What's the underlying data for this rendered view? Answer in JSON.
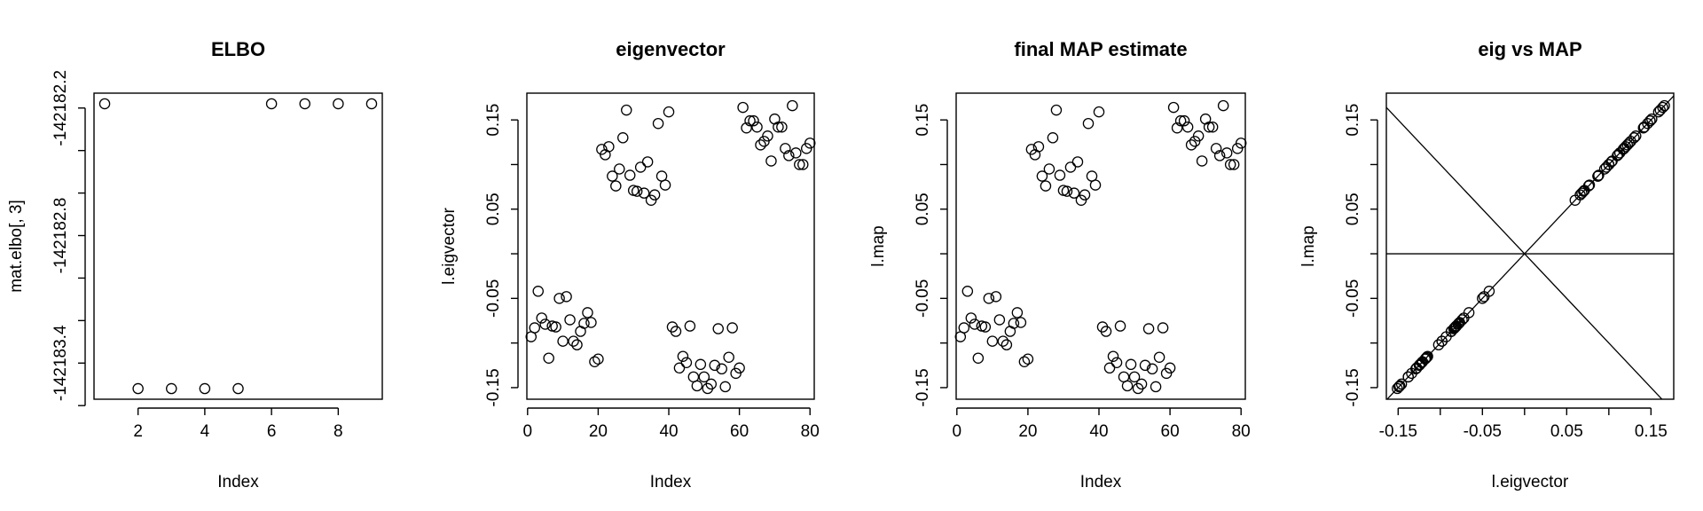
{
  "chart_data": [
    {
      "type": "scatter",
      "title": "ELBO",
      "xlabel": "Index",
      "ylabel": "mat.elbo[, 3]",
      "xlim": [
        0.68,
        9.32
      ],
      "ylim": [
        -142183.57,
        -142182.13
      ],
      "xticks": [
        2,
        4,
        6,
        8
      ],
      "xtick_labels": [
        "2",
        "4",
        "6",
        "8"
      ],
      "yticks": [
        -142183.6,
        -142183.4,
        -142183.2,
        -142183.0,
        -142182.8,
        -142182.6,
        -142182.4,
        -142182.2
      ],
      "ytick_labels": [
        "",
        "-142183.4",
        "",
        "",
        "-142182.8",
        "",
        "",
        "-142182.2"
      ],
      "x": [
        1,
        2,
        3,
        4,
        5,
        6,
        7,
        8,
        9
      ],
      "y": [
        -142182.18,
        -142183.52,
        -142183.52,
        -142183.52,
        -142183.52,
        -142182.18,
        -142182.18,
        -142182.18,
        -142182.18
      ]
    },
    {
      "type": "scatter",
      "title": "eigenvector",
      "xlabel": "Index",
      "ylabel": "l.eigvector",
      "xlim": [
        -0.2,
        81.2
      ],
      "ylim": [
        -0.163,
        0.18
      ],
      "xticks": [
        0,
        20,
        40,
        60,
        80
      ],
      "xtick_labels": [
        "0",
        "20",
        "40",
        "60",
        "80"
      ],
      "yticks": [
        -0.15,
        -0.1,
        -0.05,
        0,
        0.05,
        0.1,
        0.15
      ],
      "ytick_labels": [
        "-0.15",
        "",
        "-0.05",
        "",
        "0.05",
        "",
        "0.15"
      ],
      "x": [
        1,
        2,
        3,
        4,
        5,
        6,
        7,
        8,
        9,
        10,
        11,
        12,
        13,
        14,
        15,
        16,
        17,
        18,
        19,
        20,
        21,
        22,
        23,
        24,
        25,
        26,
        27,
        28,
        29,
        30,
        31,
        32,
        33,
        34,
        35,
        36,
        37,
        38,
        39,
        40,
        41,
        42,
        43,
        44,
        45,
        46,
        47,
        48,
        49,
        50,
        51,
        52,
        53,
        54,
        55,
        56,
        57,
        58,
        59,
        60,
        61,
        62,
        63,
        64,
        65,
        66,
        67,
        68,
        69,
        70,
        71,
        72,
        73,
        74,
        75,
        76,
        77,
        78,
        79,
        80
      ],
      "y": [
        -0.093,
        -0.083,
        -0.042,
        -0.072,
        -0.079,
        -0.117,
        -0.081,
        -0.082,
        -0.05,
        -0.098,
        -0.048,
        -0.074,
        -0.098,
        -0.102,
        -0.087,
        -0.078,
        -0.066,
        -0.077,
        -0.121,
        -0.118,
        0.117,
        0.111,
        0.12,
        0.087,
        0.076,
        0.095,
        0.13,
        0.161,
        0.088,
        0.071,
        0.07,
        0.097,
        0.068,
        0.103,
        0.06,
        0.066,
        0.146,
        0.087,
        0.077,
        0.159,
        -0.082,
        -0.087,
        -0.128,
        -0.115,
        -0.122,
        -0.081,
        -0.138,
        -0.148,
        -0.124,
        -0.138,
        -0.151,
        -0.146,
        -0.125,
        -0.084,
        -0.129,
        -0.149,
        -0.116,
        -0.083,
        -0.134,
        -0.128,
        0.164,
        0.141,
        0.149,
        0.149,
        0.142,
        0.122,
        0.126,
        0.132,
        0.104,
        0.151,
        0.142,
        0.142,
        0.118,
        0.11,
        0.166,
        0.113,
        0.1,
        0.1,
        0.118,
        0.124
      ]
    },
    {
      "type": "scatter",
      "title": "final MAP estimate",
      "xlabel": "Index",
      "ylabel": "l.map",
      "xlim": [
        -0.2,
        81.2
      ],
      "ylim": [
        -0.163,
        0.18
      ],
      "xticks": [
        0,
        20,
        40,
        60,
        80
      ],
      "xtick_labels": [
        "0",
        "20",
        "40",
        "60",
        "80"
      ],
      "yticks": [
        -0.15,
        -0.1,
        -0.05,
        0,
        0.05,
        0.1,
        0.15
      ],
      "ytick_labels": [
        "-0.15",
        "",
        "-0.05",
        "",
        "0.05",
        "",
        "0.15"
      ],
      "x": [
        1,
        2,
        3,
        4,
        5,
        6,
        7,
        8,
        9,
        10,
        11,
        12,
        13,
        14,
        15,
        16,
        17,
        18,
        19,
        20,
        21,
        22,
        23,
        24,
        25,
        26,
        27,
        28,
        29,
        30,
        31,
        32,
        33,
        34,
        35,
        36,
        37,
        38,
        39,
        40,
        41,
        42,
        43,
        44,
        45,
        46,
        47,
        48,
        49,
        50,
        51,
        52,
        53,
        54,
        55,
        56,
        57,
        58,
        59,
        60,
        61,
        62,
        63,
        64,
        65,
        66,
        67,
        68,
        69,
        70,
        71,
        72,
        73,
        74,
        75,
        76,
        77,
        78,
        79,
        80
      ],
      "y": [
        -0.093,
        -0.083,
        -0.042,
        -0.072,
        -0.079,
        -0.117,
        -0.081,
        -0.082,
        -0.05,
        -0.098,
        -0.048,
        -0.074,
        -0.098,
        -0.102,
        -0.087,
        -0.078,
        -0.066,
        -0.077,
        -0.121,
        -0.118,
        0.117,
        0.111,
        0.12,
        0.087,
        0.076,
        0.095,
        0.13,
        0.161,
        0.088,
        0.071,
        0.07,
        0.097,
        0.068,
        0.103,
        0.06,
        0.066,
        0.146,
        0.087,
        0.077,
        0.159,
        -0.082,
        -0.087,
        -0.128,
        -0.115,
        -0.122,
        -0.081,
        -0.138,
        -0.148,
        -0.124,
        -0.138,
        -0.151,
        -0.146,
        -0.125,
        -0.084,
        -0.129,
        -0.149,
        -0.116,
        -0.083,
        -0.134,
        -0.128,
        0.164,
        0.141,
        0.149,
        0.149,
        0.142,
        0.122,
        0.126,
        0.132,
        0.104,
        0.151,
        0.142,
        0.142,
        0.118,
        0.11,
        0.166,
        0.113,
        0.1,
        0.1,
        0.118,
        0.124
      ]
    },
    {
      "type": "scatter",
      "title": "eig vs MAP",
      "xlabel": "l.eigvector",
      "ylabel": "l.map",
      "xlim": [
        -0.164,
        0.177
      ],
      "ylim": [
        -0.163,
        0.18
      ],
      "xticks": [
        -0.15,
        -0.1,
        -0.05,
        0,
        0.05,
        0.1,
        0.15
      ],
      "xtick_labels": [
        "-0.15",
        "",
        "-0.05",
        "",
        "0.05",
        "",
        "0.15"
      ],
      "yticks": [
        -0.15,
        -0.1,
        -0.05,
        0,
        0.05,
        0.1,
        0.15
      ],
      "ytick_labels": [
        "-0.15",
        "",
        "-0.05",
        "",
        "0.05",
        "",
        "0.15"
      ],
      "reference_lines": [
        {
          "slope": 1,
          "intercept": 0
        },
        {
          "slope": -1,
          "intercept": 0
        },
        {
          "slope": 0,
          "intercept": 0
        }
      ],
      "x": [
        -0.093,
        -0.083,
        -0.042,
        -0.072,
        -0.079,
        -0.117,
        -0.081,
        -0.082,
        -0.05,
        -0.098,
        -0.048,
        -0.074,
        -0.098,
        -0.102,
        -0.087,
        -0.078,
        -0.066,
        -0.077,
        -0.121,
        -0.118,
        0.117,
        0.111,
        0.12,
        0.087,
        0.076,
        0.095,
        0.13,
        0.161,
        0.088,
        0.071,
        0.07,
        0.097,
        0.068,
        0.103,
        0.06,
        0.066,
        0.146,
        0.087,
        0.077,
        0.159,
        -0.082,
        -0.087,
        -0.128,
        -0.115,
        -0.122,
        -0.081,
        -0.138,
        -0.148,
        -0.124,
        -0.138,
        -0.151,
        -0.146,
        -0.125,
        -0.084,
        -0.129,
        -0.149,
        -0.116,
        -0.083,
        -0.134,
        -0.128,
        0.164,
        0.141,
        0.149,
        0.149,
        0.142,
        0.122,
        0.126,
        0.132,
        0.104,
        0.151,
        0.142,
        0.142,
        0.118,
        0.11,
        0.166,
        0.113,
        0.1,
        0.1,
        0.118,
        0.124
      ],
      "y": [
        -0.093,
        -0.083,
        -0.042,
        -0.072,
        -0.079,
        -0.117,
        -0.081,
        -0.082,
        -0.05,
        -0.098,
        -0.048,
        -0.074,
        -0.098,
        -0.102,
        -0.087,
        -0.078,
        -0.066,
        -0.077,
        -0.121,
        -0.118,
        0.117,
        0.111,
        0.12,
        0.087,
        0.076,
        0.095,
        0.13,
        0.161,
        0.088,
        0.071,
        0.07,
        0.097,
        0.068,
        0.103,
        0.06,
        0.066,
        0.146,
        0.087,
        0.077,
        0.159,
        -0.082,
        -0.087,
        -0.128,
        -0.115,
        -0.122,
        -0.081,
        -0.138,
        -0.148,
        -0.124,
        -0.138,
        -0.151,
        -0.146,
        -0.125,
        -0.084,
        -0.129,
        -0.149,
        -0.116,
        -0.083,
        -0.134,
        -0.128,
        0.164,
        0.141,
        0.149,
        0.149,
        0.142,
        0.122,
        0.126,
        0.132,
        0.104,
        0.151,
        0.142,
        0.142,
        0.118,
        0.11,
        0.166,
        0.113,
        0.1,
        0.1,
        0.118,
        0.124
      ]
    }
  ]
}
